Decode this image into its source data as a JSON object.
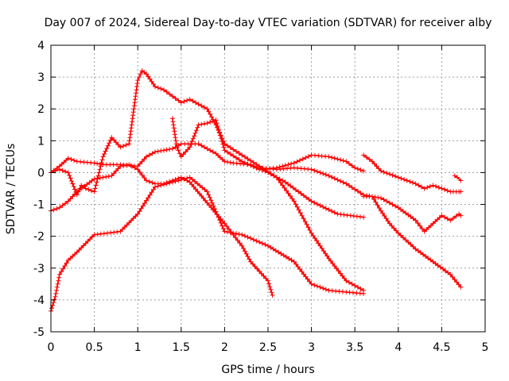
{
  "chart_data": {
    "type": "scatter",
    "title": "Day 007 of 2024, Sidereal Day-to-day VTEC variation (SDTVAR) for receiver alby",
    "xlabel": "GPS time / hours",
    "ylabel": "SDTVAR / TECUs",
    "xlim": [
      0,
      5
    ],
    "ylim": [
      -5,
      4
    ],
    "grid": true,
    "marker": "+",
    "color": "#ff0000",
    "x_ticks": [
      0,
      0.5,
      1,
      1.5,
      2,
      2.5,
      3,
      3.5,
      4,
      4.5,
      5
    ],
    "x_tick_labels": [
      "0",
      "0.5",
      "1",
      "1.5",
      "2",
      "2.5",
      "3",
      "3.5",
      "4",
      "4.5",
      "5"
    ],
    "y_ticks": [
      -5,
      -4,
      -3,
      -2,
      -1,
      0,
      1,
      2,
      3,
      4
    ],
    "y_tick_labels": [
      "-5",
      "-4",
      "-3",
      "-2",
      "-1",
      "0",
      "1",
      "2",
      "3",
      "4"
    ],
    "series": [
      {
        "name": "s1",
        "x": [
          0,
          0.05,
          0.1,
          0.2,
          0.3,
          0.5,
          0.8,
          1.0,
          1.2,
          1.4,
          1.6,
          1.8,
          2.0,
          2.2,
          2.5,
          2.8,
          3.0,
          3.2,
          3.4,
          3.6
        ],
        "y": [
          -4.35,
          -3.9,
          -3.2,
          -2.75,
          -2.5,
          -1.95,
          -1.85,
          -1.3,
          -0.45,
          -0.3,
          -0.15,
          -0.6,
          -1.85,
          -1.95,
          -2.3,
          -2.8,
          -3.5,
          -3.7,
          -3.75,
          -3.8
        ]
      },
      {
        "name": "s2",
        "x": [
          0,
          0.1,
          0.2,
          0.3,
          0.5,
          0.7,
          0.8,
          0.9,
          1.0,
          1.1,
          1.2,
          1.3,
          1.5,
          1.6,
          1.8,
          2.0,
          2.1,
          2.2,
          2.3,
          2.5,
          2.55
        ],
        "y": [
          -1.2,
          -1.1,
          -0.9,
          -0.6,
          -0.2,
          -0.1,
          0.2,
          0.25,
          0.1,
          -0.25,
          -0.35,
          -0.35,
          -0.15,
          -0.3,
          -0.95,
          -1.6,
          -1.95,
          -2.3,
          -2.8,
          -3.4,
          -3.85
        ]
      },
      {
        "name": "s3",
        "x": [
          0,
          0.1,
          0.2,
          0.3,
          0.5,
          0.6,
          0.8,
          1.0,
          1.1,
          1.2,
          1.4,
          1.5,
          1.7,
          1.9,
          2.0,
          2.1,
          2.3,
          2.5,
          2.7,
          3.0,
          3.3,
          3.6
        ],
        "y": [
          0,
          0.2,
          0.45,
          0.35,
          0.3,
          0.25,
          0.25,
          0.2,
          0.5,
          0.65,
          0.75,
          0.9,
          0.9,
          0.6,
          0.35,
          0.3,
          0.25,
          0.0,
          -0.3,
          -0.9,
          -1.3,
          -1.4
        ]
      },
      {
        "name": "s4",
        "x": [
          0,
          0.05,
          0.1,
          0.2,
          0.3,
          0.35,
          0.4,
          0.5,
          0.6,
          0.7,
          0.8,
          0.9,
          1.0,
          1.05,
          1.1,
          1.2,
          1.3,
          1.4,
          1.5,
          1.6,
          1.7,
          1.8,
          1.9,
          2.0,
          2.2,
          2.4,
          2.6,
          2.8,
          3.0,
          3.2,
          3.4,
          3.6
        ],
        "y": [
          0,
          0.05,
          0.1,
          0.0,
          -0.7,
          -0.4,
          -0.5,
          -0.6,
          0.5,
          1.1,
          0.8,
          0.9,
          2.9,
          3.2,
          3.1,
          2.7,
          2.6,
          2.4,
          2.2,
          2.3,
          2.15,
          2.0,
          1.5,
          0.9,
          0.55,
          0.2,
          -0.15,
          -0.9,
          -1.9,
          -2.7,
          -3.4,
          -3.7
        ]
      },
      {
        "name": "s5",
        "x": [
          1.4,
          1.45,
          1.5,
          1.6,
          1.7,
          1.8,
          1.9,
          2.0,
          2.2,
          2.4,
          2.6,
          2.8,
          3.0,
          3.2,
          3.4,
          3.5,
          3.6
        ],
        "y": [
          1.7,
          0.8,
          0.5,
          0.8,
          1.5,
          1.55,
          1.65,
          0.7,
          0.35,
          0.1,
          0.15,
          0.3,
          0.55,
          0.5,
          0.35,
          0.15,
          0.05
        ]
      },
      {
        "name": "s6",
        "x": [
          2.4,
          2.6,
          2.8,
          3.0,
          3.2,
          3.4,
          3.6,
          3.8,
          4.0,
          4.2,
          4.3,
          4.4,
          4.5,
          4.6,
          4.7,
          4.72
        ],
        "y": [
          0.15,
          0.1,
          0.15,
          0.1,
          -0.1,
          -0.35,
          -0.7,
          -0.8,
          -1.1,
          -1.5,
          -1.85,
          -1.6,
          -1.35,
          -1.5,
          -1.3,
          -1.35
        ]
      },
      {
        "name": "s7",
        "x": [
          3.6,
          3.7,
          3.8,
          3.9,
          4.0,
          4.1,
          4.2,
          4.3,
          4.4,
          4.5,
          4.6,
          4.7,
          4.72
        ],
        "y": [
          0.55,
          0.35,
          0.05,
          -0.05,
          -0.15,
          -0.25,
          -0.35,
          -0.5,
          -0.4,
          -0.5,
          -0.6,
          -0.6,
          -0.6
        ]
      },
      {
        "name": "s8",
        "x": [
          3.6,
          3.7,
          3.8,
          3.9,
          4.0,
          4.2,
          4.4,
          4.6,
          4.72
        ],
        "y": [
          -0.75,
          -0.75,
          -1.2,
          -1.6,
          -1.9,
          -2.4,
          -2.8,
          -3.2,
          -3.6
        ]
      },
      {
        "name": "s9",
        "x": [
          4.65,
          4.68,
          4.72
        ],
        "y": [
          -0.1,
          -0.15,
          -0.25
        ]
      }
    ]
  }
}
